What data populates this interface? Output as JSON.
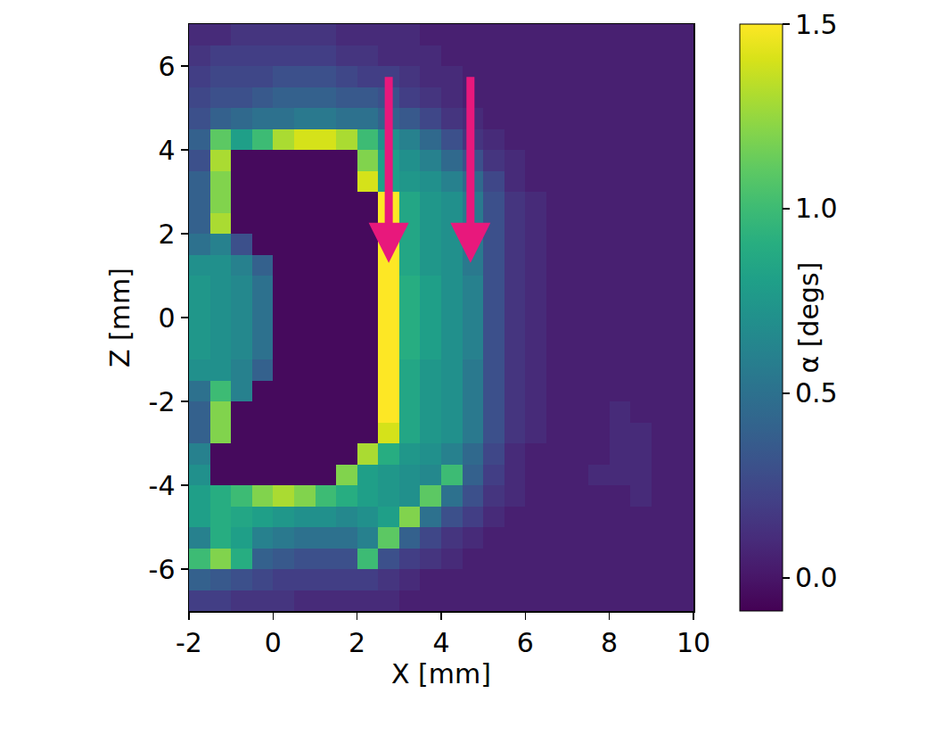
{
  "chart_data": {
    "type": "heatmap",
    "x_label": "X [mm]",
    "y_label": "Z [mm]",
    "xlim": [
      -2,
      10
    ],
    "ylim": [
      -7,
      7
    ],
    "xticks": [
      -2,
      0,
      2,
      4,
      6,
      8,
      10
    ],
    "yticks": [
      -6,
      -4,
      -2,
      0,
      2,
      4,
      6
    ],
    "color": "viridis",
    "x": [
      -1.75,
      -1.25,
      -0.75,
      -0.25,
      0.25,
      0.75,
      1.25,
      1.75,
      2.25,
      2.75,
      3.25,
      3.75,
      4.25,
      4.75,
      5.25,
      5.75,
      6.25,
      6.75,
      7.25,
      7.75,
      8.25,
      8.75,
      9.25,
      9.75
    ],
    "y": [
      -6.75,
      -6.25,
      -5.75,
      -5.25,
      -4.75,
      -4.25,
      -3.75,
      -3.25,
      -2.75,
      -2.25,
      -1.75,
      -1.25,
      -0.75,
      -0.25,
      0.25,
      0.75,
      1.25,
      1.75,
      2.25,
      2.75,
      3.25,
      3.75,
      4.25,
      4.75,
      5.25,
      5.75,
      6.25,
      6.75
    ],
    "values": [
      [
        0.2,
        0.2,
        0.15,
        0.15,
        0.15,
        0.1,
        0.1,
        0.1,
        0.1,
        0.1,
        0.05,
        0.05,
        0.05,
        0.05,
        0.05,
        0.05,
        0.05,
        0.05,
        0.05,
        0.05,
        0.05,
        0.05,
        0.05,
        0.05
      ],
      [
        0.4,
        0.35,
        0.3,
        0.25,
        0.2,
        0.2,
        0.2,
        0.2,
        0.2,
        0.15,
        0.1,
        0.05,
        0.05,
        0.05,
        0.05,
        0.05,
        0.05,
        0.05,
        0.05,
        0.05,
        0.05,
        0.05,
        0.05,
        0.05
      ],
      [
        1.0,
        1.2,
        0.9,
        0.4,
        0.35,
        0.3,
        0.3,
        0.3,
        1.0,
        0.3,
        0.2,
        0.15,
        0.1,
        0.05,
        0.05,
        0.05,
        0.05,
        0.05,
        0.05,
        0.05,
        0.05,
        0.05,
        0.05,
        0.05
      ],
      [
        0.6,
        0.9,
        0.8,
        0.6,
        0.55,
        0.5,
        0.5,
        0.5,
        0.6,
        1.1,
        0.4,
        0.25,
        0.15,
        0.1,
        0.05,
        0.05,
        0.05,
        0.05,
        0.05,
        0.05,
        0.05,
        0.05,
        0.05,
        0.05
      ],
      [
        0.8,
        0.9,
        0.85,
        0.8,
        0.75,
        0.7,
        0.7,
        0.65,
        0.7,
        0.8,
        1.2,
        0.5,
        0.3,
        0.2,
        0.1,
        0.05,
        0.05,
        0.05,
        0.05,
        0.05,
        0.05,
        0.05,
        0.05,
        0.05
      ],
      [
        0.8,
        0.9,
        1.0,
        1.2,
        1.3,
        1.2,
        1.0,
        0.9,
        0.8,
        0.75,
        0.7,
        1.1,
        0.5,
        0.3,
        0.15,
        0.1,
        0.05,
        0.05,
        0.05,
        0.05,
        0.05,
        0.1,
        0.05,
        0.05
      ],
      [
        0.7,
        -0.05,
        -0.05,
        -0.05,
        -0.05,
        -0.05,
        -0.05,
        1.2,
        0.8,
        0.75,
        0.7,
        0.65,
        1.0,
        0.4,
        0.2,
        0.1,
        0.05,
        0.05,
        0.05,
        0.1,
        0.1,
        0.1,
        0.05,
        0.05
      ],
      [
        0.6,
        -0.05,
        -0.05,
        -0.05,
        -0.05,
        -0.05,
        -0.05,
        -0.05,
        1.3,
        0.9,
        0.75,
        0.7,
        0.6,
        0.45,
        0.25,
        0.1,
        0.05,
        0.05,
        0.05,
        0.05,
        0.1,
        0.1,
        0.05,
        0.05
      ],
      [
        0.4,
        1.2,
        -0.05,
        -0.05,
        -0.05,
        -0.05,
        -0.05,
        -0.05,
        -0.05,
        1.4,
        0.85,
        0.75,
        0.7,
        0.55,
        0.3,
        0.15,
        0.1,
        0.05,
        0.05,
        0.05,
        0.1,
        0.1,
        0.05,
        0.05
      ],
      [
        0.4,
        1.2,
        -0.05,
        -0.05,
        -0.05,
        -0.05,
        -0.05,
        -0.05,
        -0.05,
        1.5,
        0.85,
        0.75,
        0.7,
        0.55,
        0.3,
        0.15,
        0.1,
        0.05,
        0.05,
        0.05,
        0.1,
        0.05,
        0.05,
        0.05
      ],
      [
        0.5,
        1.0,
        0.6,
        -0.05,
        -0.05,
        -0.05,
        -0.05,
        -0.05,
        -0.05,
        1.5,
        0.85,
        0.75,
        0.7,
        0.55,
        0.3,
        0.15,
        0.1,
        0.05,
        0.05,
        0.05,
        0.05,
        0.05,
        0.05,
        0.05
      ],
      [
        0.7,
        0.7,
        0.6,
        0.4,
        -0.05,
        -0.05,
        -0.05,
        -0.05,
        -0.05,
        1.5,
        0.85,
        0.75,
        0.7,
        0.55,
        0.3,
        0.15,
        0.1,
        0.05,
        0.05,
        0.05,
        0.05,
        0.05,
        0.05,
        0.05
      ],
      [
        0.75,
        0.7,
        0.65,
        0.5,
        -0.05,
        -0.05,
        -0.05,
        -0.05,
        -0.05,
        1.5,
        0.9,
        0.8,
        0.7,
        0.6,
        0.3,
        0.15,
        0.1,
        0.05,
        0.05,
        0.05,
        0.05,
        0.05,
        0.05,
        0.05
      ],
      [
        0.75,
        0.7,
        0.65,
        0.5,
        -0.05,
        -0.05,
        -0.05,
        -0.05,
        -0.05,
        1.5,
        0.9,
        0.8,
        0.7,
        0.6,
        0.3,
        0.15,
        0.1,
        0.05,
        0.05,
        0.05,
        0.05,
        0.05,
        0.05,
        0.05
      ],
      [
        0.75,
        0.7,
        0.65,
        0.5,
        -0.05,
        -0.05,
        -0.05,
        -0.05,
        -0.05,
        1.5,
        0.9,
        0.8,
        0.7,
        0.6,
        0.3,
        0.15,
        0.1,
        0.05,
        0.05,
        0.05,
        0.05,
        0.05,
        0.05,
        0.05
      ],
      [
        0.75,
        0.7,
        0.65,
        0.5,
        -0.05,
        -0.05,
        -0.05,
        -0.05,
        -0.05,
        1.5,
        0.9,
        0.8,
        0.7,
        0.6,
        0.3,
        0.15,
        0.1,
        0.05,
        0.05,
        0.05,
        0.05,
        0.05,
        0.05,
        0.05
      ],
      [
        0.7,
        0.7,
        0.6,
        0.4,
        -0.05,
        -0.05,
        -0.05,
        -0.05,
        -0.05,
        1.5,
        0.85,
        0.75,
        0.7,
        0.55,
        0.3,
        0.15,
        0.1,
        0.05,
        0.05,
        0.05,
        0.05,
        0.05,
        0.05,
        0.05
      ],
      [
        0.5,
        0.6,
        0.3,
        -0.05,
        -0.05,
        -0.05,
        -0.05,
        -0.05,
        -0.05,
        1.5,
        0.85,
        0.75,
        0.7,
        0.55,
        0.3,
        0.15,
        0.1,
        0.05,
        0.05,
        0.05,
        0.05,
        0.05,
        0.05,
        0.05
      ],
      [
        0.4,
        1.3,
        -0.05,
        -0.05,
        -0.05,
        -0.05,
        -0.05,
        -0.05,
        -0.05,
        1.5,
        0.85,
        0.75,
        0.7,
        0.55,
        0.3,
        0.15,
        0.1,
        0.05,
        0.05,
        0.05,
        0.05,
        0.05,
        0.05,
        0.05
      ],
      [
        0.4,
        1.2,
        -0.05,
        -0.05,
        -0.05,
        -0.05,
        -0.05,
        -0.05,
        -0.05,
        1.5,
        0.85,
        0.75,
        0.7,
        0.55,
        0.3,
        0.15,
        0.1,
        0.05,
        0.05,
        0.05,
        0.05,
        0.05,
        0.05,
        0.05
      ],
      [
        0.4,
        1.2,
        -0.05,
        -0.05,
        -0.05,
        -0.05,
        -0.05,
        -0.05,
        1.4,
        0.8,
        0.75,
        0.7,
        0.6,
        0.45,
        0.25,
        0.1,
        0.05,
        0.05,
        0.05,
        0.05,
        0.05,
        0.05,
        0.05,
        0.05
      ],
      [
        0.3,
        1.3,
        -0.05,
        -0.05,
        -0.05,
        -0.05,
        -0.05,
        -0.05,
        1.2,
        0.8,
        0.7,
        0.6,
        0.45,
        0.3,
        0.15,
        0.1,
        0.05,
        0.05,
        0.05,
        0.05,
        0.05,
        0.05,
        0.05,
        0.05
      ],
      [
        0.4,
        1.1,
        0.8,
        1.0,
        1.3,
        1.4,
        1.4,
        1.3,
        1.0,
        0.7,
        0.6,
        0.45,
        0.3,
        0.15,
        0.1,
        0.05,
        0.05,
        0.05,
        0.05,
        0.05,
        0.05,
        0.05,
        0.05,
        0.05
      ],
      [
        0.3,
        0.4,
        0.45,
        0.5,
        0.5,
        0.55,
        0.55,
        0.5,
        0.5,
        0.4,
        0.35,
        0.25,
        0.15,
        0.1,
        0.05,
        0.05,
        0.05,
        0.05,
        0.05,
        0.05,
        0.05,
        0.05,
        0.05,
        0.05
      ],
      [
        0.25,
        0.3,
        0.3,
        0.35,
        0.4,
        0.4,
        0.4,
        0.35,
        0.35,
        0.3,
        0.2,
        0.15,
        0.1,
        0.05,
        0.05,
        0.05,
        0.05,
        0.05,
        0.05,
        0.05,
        0.05,
        0.05,
        0.05,
        0.05
      ],
      [
        0.2,
        0.25,
        0.25,
        0.25,
        0.3,
        0.3,
        0.3,
        0.25,
        0.2,
        0.2,
        0.15,
        0.1,
        0.1,
        0.05,
        0.05,
        0.05,
        0.05,
        0.05,
        0.05,
        0.05,
        0.05,
        0.05,
        0.05,
        0.05
      ],
      [
        0.15,
        0.2,
        0.2,
        0.2,
        0.2,
        0.2,
        0.2,
        0.15,
        0.15,
        0.1,
        0.1,
        0.1,
        0.05,
        0.05,
        0.05,
        0.05,
        0.05,
        0.05,
        0.05,
        0.05,
        0.05,
        0.05,
        0.05,
        0.05
      ],
      [
        0.1,
        0.1,
        0.15,
        0.15,
        0.15,
        0.15,
        0.15,
        0.1,
        0.1,
        0.1,
        0.1,
        0.05,
        0.05,
        0.05,
        0.05,
        0.05,
        0.05,
        0.05,
        0.05,
        0.05,
        0.05,
        0.05,
        0.05,
        0.05
      ]
    ],
    "colorbar": {
      "title": "α [degs]",
      "range": [
        -0.09,
        1.5
      ],
      "ticks": [
        {
          "value": 0,
          "label": "0.0"
        },
        0.5,
        {
          "value": 1,
          "label": "1.0"
        },
        1.5
      ]
    }
  }
}
